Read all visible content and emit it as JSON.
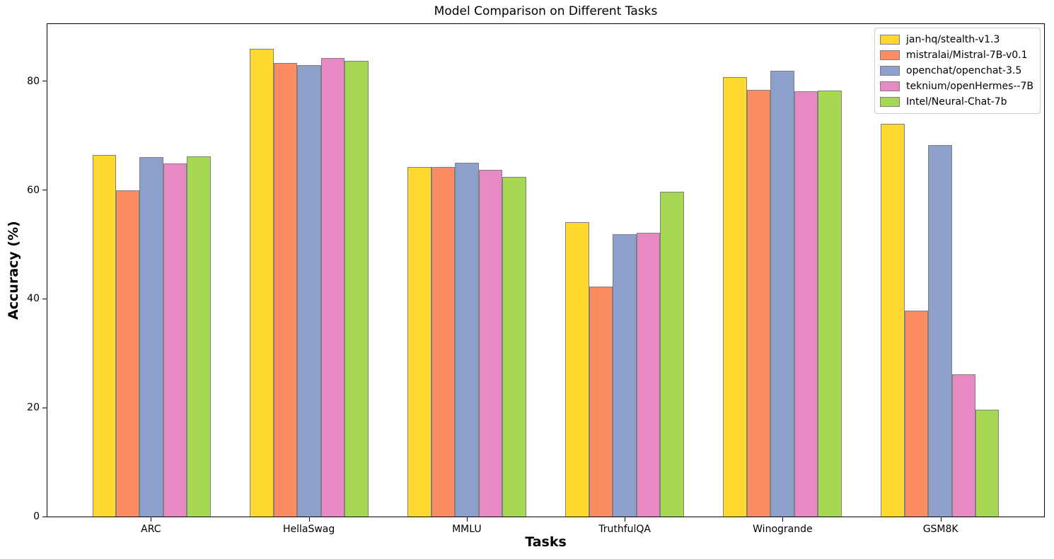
{
  "title": "Model Comparison on Different Tasks",
  "colors": {
    "bar_edge": "#808080",
    "legend_border": "#cccccc",
    "axis": "#000000",
    "background": "#ffffff"
  },
  "chart_data": {
    "type": "bar",
    "title": "Model Comparison on Different Tasks",
    "xlabel": "Tasks",
    "ylabel": "Accuracy (%)",
    "categories": [
      "ARC",
      "HellaSwag",
      "MMLU",
      "TruthfulQA",
      "Winogrande",
      "GSM8K"
    ],
    "series": [
      {
        "name": "jan-hq/stealth-v1.3",
        "color": "#FFD92F",
        "values": [
          66.4,
          86.0,
          64.3,
          54.1,
          80.8,
          72.2
        ]
      },
      {
        "name": "mistralai/Mistral-7B-v0.1",
        "color": "#FC8D62",
        "values": [
          60.0,
          83.4,
          64.2,
          42.2,
          78.4,
          37.8
        ]
      },
      {
        "name": "openchat/openchat-3.5",
        "color": "#8DA0CB",
        "values": [
          66.0,
          83.0,
          65.0,
          51.9,
          81.9,
          68.3
        ]
      },
      {
        "name": "teknium/openHermes--7B",
        "color": "#E78AC3",
        "values": [
          64.9,
          84.2,
          63.7,
          52.2,
          78.1,
          26.1
        ]
      },
      {
        "name": "Intel/Neural-Chat-7b",
        "color": "#A6D854",
        "values": [
          66.2,
          83.7,
          62.4,
          59.7,
          78.3,
          19.6
        ]
      }
    ],
    "yticks": [
      0,
      20,
      40,
      60,
      80
    ],
    "ylim": [
      0,
      90.5
    ],
    "bar_width": 0.15,
    "grid": false,
    "legend_position": "upper right"
  }
}
